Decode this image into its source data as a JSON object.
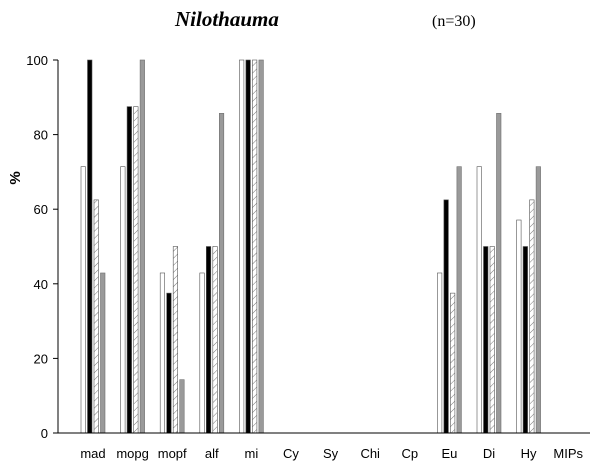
{
  "chart_data": {
    "type": "bar",
    "title": "Nilothauma",
    "subtitle": "(n=30)",
    "ylabel": "%",
    "xlabel": "",
    "ylim": [
      0,
      100
    ],
    "yticks": [
      "0",
      "20",
      "40",
      "60",
      "80",
      "100"
    ],
    "grid": false,
    "categories": [
      "mad",
      "mopg",
      "mopf",
      "alf",
      "mi",
      "Cy",
      "Sy",
      "Chi",
      "Cp",
      "Eu",
      "Di",
      "Hy",
      "MIPs"
    ],
    "series": [
      {
        "fill": "#ffffff",
        "pattern": "none",
        "values": [
          71.4,
          71.4,
          42.9,
          42.9,
          100,
          0,
          0,
          0,
          0,
          42.9,
          71.4,
          57.1,
          0
        ]
      },
      {
        "fill": "#000000",
        "pattern": "none",
        "values": [
          100,
          87.5,
          37.5,
          50,
          100,
          0,
          0,
          0,
          0,
          62.5,
          50,
          50,
          0
        ]
      },
      {
        "fill": "#ffffff",
        "pattern": "hatch",
        "values": [
          62.5,
          87.5,
          50,
          50,
          100,
          0,
          0,
          0,
          0,
          37.5,
          50,
          62.5,
          0
        ]
      },
      {
        "fill": "#9a9a9a",
        "pattern": "none",
        "values": [
          42.9,
          100,
          14.3,
          85.7,
          100,
          0,
          0,
          0,
          0,
          71.4,
          85.7,
          71.4,
          0
        ]
      }
    ]
  }
}
